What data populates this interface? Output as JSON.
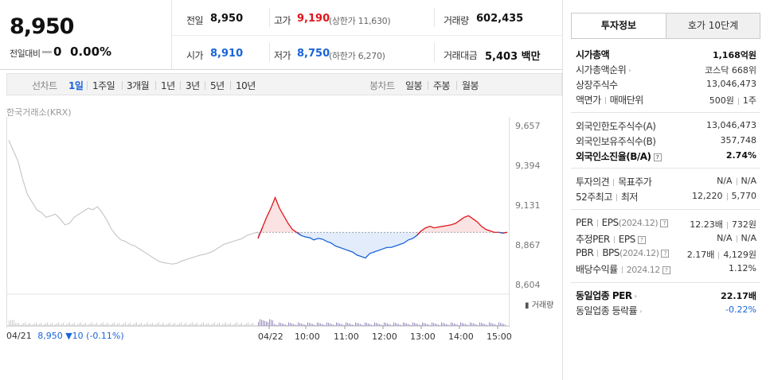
{
  "summary": {
    "current_price": "8,950",
    "change_label": "전일대비",
    "change_value": "0",
    "change_rate": "0.00%"
  },
  "quote": {
    "prev_label": "전일",
    "prev_value": "8,950",
    "high_label": "고가",
    "high_value": "9,190",
    "upper_limit": "(상한가 11,630)",
    "volume_label": "거래량",
    "volume_value": "602,435",
    "open_label": "시가",
    "open_value": "8,910",
    "low_label": "저가",
    "low_value": "8,750",
    "lower_limit": "(하한가 6,270)",
    "amount_label": "거래대금",
    "amount_value": "5,403 백만"
  },
  "toolbar": {
    "line_chart_label": "선차트",
    "periods": [
      "1일",
      "1주일",
      "3개월",
      "1년",
      "3년",
      "5년",
      "10년"
    ],
    "active_period": "1일",
    "candle_chart_label": "봉차트",
    "candle_periods": [
      "일봉",
      "주봉",
      "월봉"
    ]
  },
  "chart_data": {
    "type": "line",
    "source_label": "한국거래소(KRX)",
    "y_ticks": [
      "9,657",
      "9,394",
      "9,131",
      "8,867",
      "8,604"
    ],
    "ylim": [
      8604,
      9657
    ],
    "x_ticks": [
      "04/21",
      "04/22",
      "10:00",
      "11:00",
      "12:00",
      "13:00",
      "14:00",
      "15:00"
    ],
    "volume_label": "거래량",
    "reference_price": 8950,
    "prev_day_series": [
      9560,
      9490,
      9420,
      9300,
      9200,
      9150,
      9100,
      9080,
      9050,
      9060,
      9070,
      9040,
      9000,
      9010,
      9050,
      9070,
      9090,
      9110,
      9100,
      9120,
      9080,
      9030,
      8970,
      8930,
      8900,
      8890,
      8870,
      8860,
      8840,
      8820,
      8800,
      8780,
      8760,
      8750,
      8745,
      8740,
      8745,
      8760,
      8770,
      8780,
      8790,
      8800,
      8805,
      8815,
      8830,
      8850,
      8870,
      8880,
      8890,
      8900,
      8910,
      8930,
      8940,
      8950
    ],
    "today_series": [
      8910,
      8980,
      9050,
      9110,
      9180,
      9110,
      9060,
      9010,
      8970,
      8950,
      8930,
      8920,
      8915,
      8900,
      8910,
      8905,
      8890,
      8880,
      8860,
      8850,
      8840,
      8830,
      8820,
      8800,
      8790,
      8780,
      8810,
      8820,
      8830,
      8840,
      8850,
      8850,
      8860,
      8870,
      8880,
      8900,
      8910,
      8930,
      8960,
      8980,
      8990,
      8980,
      8985,
      8990,
      8995,
      9000,
      9010,
      9030,
      9050,
      9060,
      9040,
      9020,
      8990,
      8970,
      8960,
      8950,
      8950,
      8945,
      8950
    ],
    "bottom_date": "04/21",
    "bottom_price": "8,950",
    "bottom_change": "▼10 (-0.11%)"
  },
  "panel": {
    "tab_invest": "투자정보",
    "tab_orderbook": "호가 10단계",
    "rows": {
      "market_cap_label": "시가총액",
      "market_cap_value": "1,168억원",
      "market_rank_label": "시가총액순위",
      "market_rank_value": "코스닥 668위",
      "listed_shares_label": "상장주식수",
      "listed_shares_value": "13,046,473",
      "par_label": "액면가",
      "unit_label": "매매단위",
      "par_value": "500원",
      "unit_value": "1주",
      "foreign_limit_label": "외국인한도주식수(A)",
      "foreign_limit_value": "13,046,473",
      "foreign_hold_label": "외국인보유주식수(B)",
      "foreign_hold_value": "357,748",
      "foreign_rate_label": "외국인소진율(B/A)",
      "foreign_rate_value": "2.74%",
      "opinion_label": "투자의견",
      "target_label": "목표주가",
      "opinion_value": "N/A",
      "target_value": "N/A",
      "high52_label": "52주최고",
      "low52_label": "최저",
      "high52_value": "12,220",
      "low52_value": "5,770",
      "per_label": "PER",
      "eps_label": "EPS",
      "eps_date": "(2024.12)",
      "per_value": "12.23배",
      "eps_value": "732원",
      "est_per_label": "추정PER",
      "est_eps_label": "EPS",
      "est_per_value": "N/A",
      "est_eps_value": "N/A",
      "pbr_label": "PBR",
      "bps_label": "BPS",
      "bps_date": "(2024.12)",
      "pbr_value": "2.17배",
      "bps_value": "4,129원",
      "dividend_label": "배당수익률",
      "dividend_date": "2024.12",
      "dividend_value": "1.12%",
      "sector_per_label": "동일업종 PER",
      "sector_per_value": "22.17배",
      "sector_chg_label": "동일업종 등락률",
      "sector_chg_value": "-0.22%"
    }
  },
  "colors": {
    "up": "#e0161b",
    "down": "#1a64d9",
    "prev_line": "#c8c8c8"
  }
}
